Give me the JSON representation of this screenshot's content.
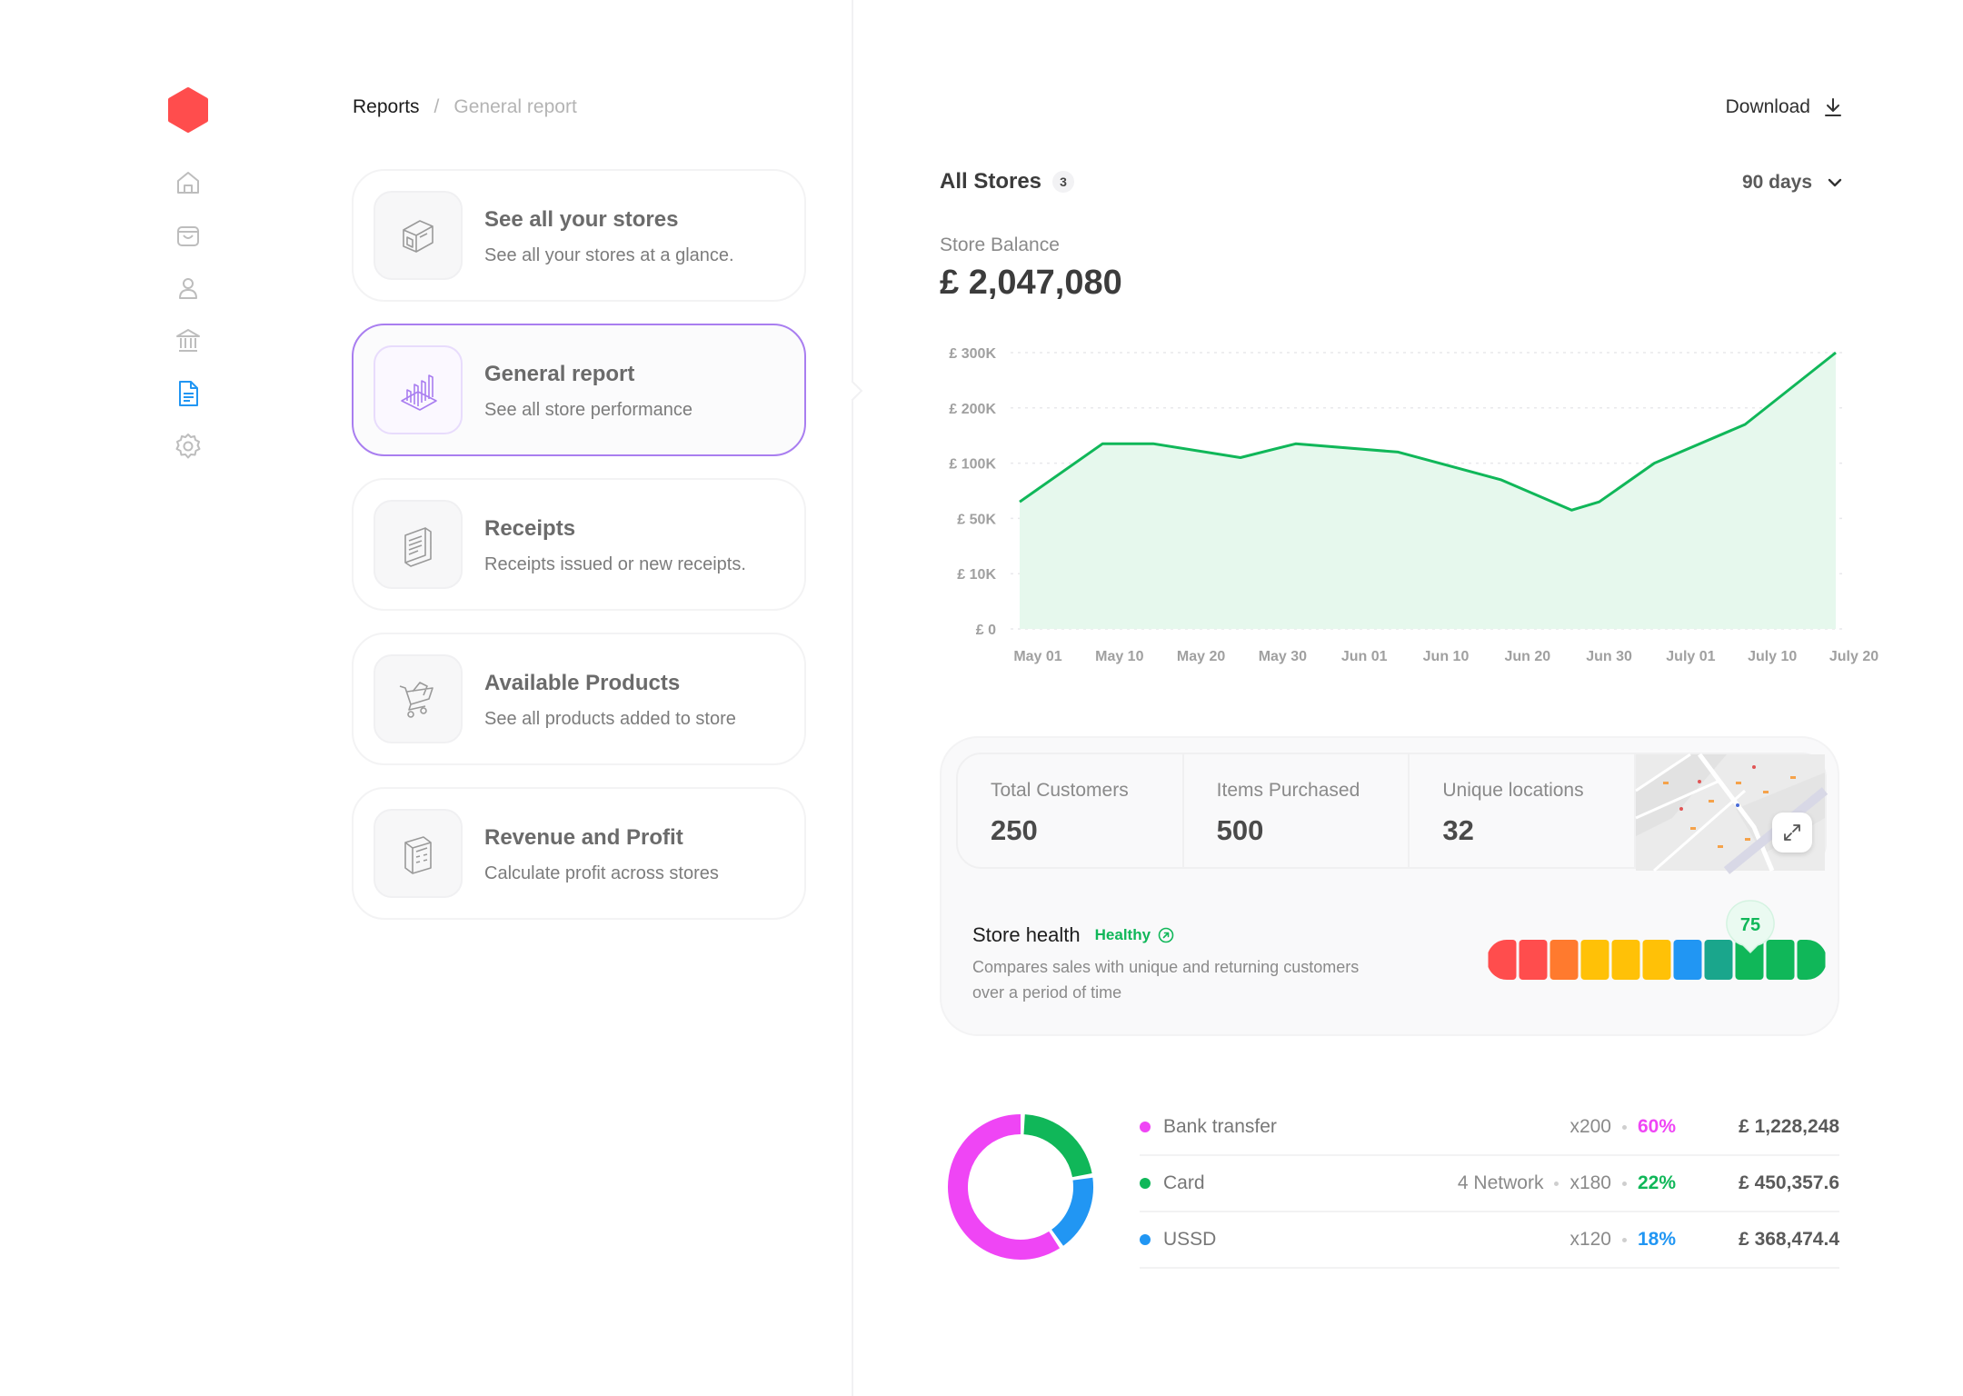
{
  "app": {
    "brand_color": "#ff4d4d",
    "accent_color": "#a97ef0"
  },
  "sidebar": {
    "items": [
      {
        "name": "home",
        "icon": "home-icon",
        "active": false
      },
      {
        "name": "shop",
        "icon": "bag-icon",
        "active": false
      },
      {
        "name": "customers",
        "icon": "user-icon",
        "active": false
      },
      {
        "name": "bank",
        "icon": "bank-icon",
        "active": false
      },
      {
        "name": "reports",
        "icon": "document-icon",
        "active": true
      },
      {
        "name": "settings",
        "icon": "gear-icon",
        "active": false
      }
    ]
  },
  "breadcrumb": {
    "root": "Reports",
    "separator": "/",
    "current": "General report"
  },
  "cards": [
    {
      "title": "See all your stores",
      "subtitle": "See all your stores at a glance.",
      "icon": "storefront-icon"
    },
    {
      "title": "General report",
      "subtitle": "See all store performance",
      "icon": "bar-chart-icon",
      "active": true
    },
    {
      "title": "Receipts",
      "subtitle": "Receipts issued or new receipts.",
      "icon": "receipt-icon"
    },
    {
      "title": "Available Products",
      "subtitle": "See all products added to store",
      "icon": "cart-icon"
    },
    {
      "title": "Revenue and Profit",
      "subtitle": "Calculate profit across stores",
      "icon": "calculator-icon"
    }
  ],
  "header": {
    "download_label": "Download",
    "stores_title": "All Stores",
    "stores_count": "3",
    "range_label": "90 days"
  },
  "balance": {
    "label": "Store Balance",
    "value": "£ 2,047,080"
  },
  "chart_data": {
    "type": "area",
    "y_tick_labels": [
      "£ 300K",
      "£ 200K",
      "£ 100K",
      "£ 50K",
      "£ 10K",
      "£ 0"
    ],
    "x_tick_labels": [
      "May 01",
      "May 10",
      "May 20",
      "May 30",
      "Jun 01",
      "Jun 10",
      "Jun 20",
      "Jun 30",
      "July 01",
      "July 10",
      "July 20"
    ],
    "y_scale": "categorical-ticks (index 0 = £ 0 ... 5 = £ 300K)",
    "points_tick_index": [
      [
        "May 01",
        2.3
      ],
      [
        "May 10",
        3.35
      ],
      [
        "May 20",
        3.35
      ],
      [
        "May 30",
        3.1
      ],
      [
        "Jun 01",
        3.35
      ],
      [
        "Jun 10",
        3.2
      ],
      [
        "Jun 20",
        2.7
      ],
      [
        "Jun 30",
        2.15
      ],
      [
        "Jun 30+",
        2.3
      ],
      [
        "July 01",
        3.0
      ],
      [
        "July 10",
        3.7
      ],
      [
        "July 20",
        5.0
      ]
    ],
    "line_color": "#10b759",
    "fill_color": "#e6f8ed",
    "grid": "horizontal dashed"
  },
  "stats": {
    "total_customers": {
      "label": "Total Customers",
      "value": "250"
    },
    "items_purchased": {
      "label": "Items Purchased",
      "value": "500"
    },
    "unique_locations": {
      "label": "Unique locations",
      "value": "32"
    }
  },
  "health": {
    "title": "Store health",
    "status": "Healthy",
    "description": "Compares sales with unique and returning customers over a period of time",
    "score": "75",
    "segment_colors": [
      "#ff4d4d",
      "#ff4d4d",
      "#ff7a2e",
      "#ffc107",
      "#ffc107",
      "#ffc107",
      "#2196f3",
      "#1aa68c",
      "#10b759",
      "#10b759",
      "#10b759"
    ],
    "marker_segment_index": 8
  },
  "payments": [
    {
      "method": "Bank transfer",
      "extra": "",
      "count": "x200",
      "percent": "60%",
      "share": 60,
      "amount": "£ 1,228,248",
      "color": "#ef45f5"
    },
    {
      "method": "Card",
      "extra": "4 Network",
      "count": "x180",
      "percent": "22%",
      "share": 22,
      "amount": "£ 450,357.6",
      "color": "#10b759"
    },
    {
      "method": "USSD",
      "extra": "",
      "count": "x120",
      "percent": "18%",
      "share": 18,
      "amount": "£ 368,474.4",
      "color": "#2196f3"
    }
  ]
}
